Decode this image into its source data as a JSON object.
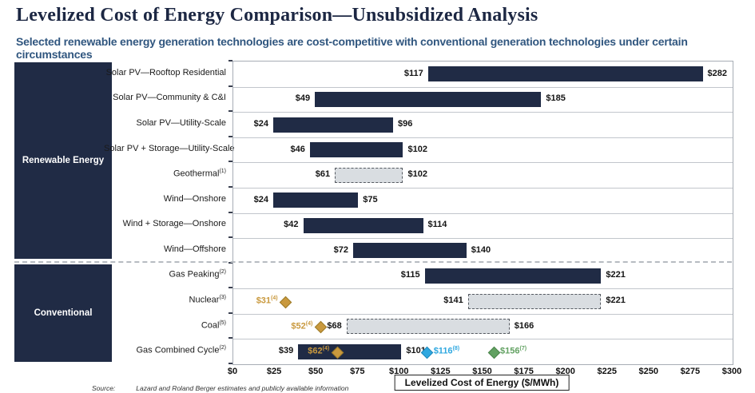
{
  "header": {
    "title": "Levelized Cost of Energy Comparison—Unsubsidized Analysis",
    "subtitle": "Selected renewable energy generation technologies are cost-competitive with conventional generation technologies under certain circumstances"
  },
  "footer": {
    "source_label": "Source:",
    "source_text": "Lazard and Roland Berger estimates and publicly available information"
  },
  "colors": {
    "navy": "#202b45",
    "dashed_fill": "#d9dde1",
    "gold": "#c9993e",
    "gold_border": "#9c7a28",
    "blue": "#2fa8e0",
    "blue_border": "#1d87ba",
    "green": "#62a162",
    "green_border": "#4a844a",
    "title_navy": "#1c2743",
    "subtitle_blue": "#30567f"
  },
  "chart_data": {
    "type": "bar",
    "orientation": "horizontal-range",
    "title": "Levelized Cost of Energy Comparison—Unsubsidized Analysis",
    "xlabel_box": "Levelized Cost of Energy ($/MWh)",
    "xlim": [
      0,
      300
    ],
    "x_ticks": [
      0,
      25,
      50,
      75,
      100,
      125,
      150,
      175,
      200,
      225,
      250,
      275,
      300
    ],
    "x_tick_labels": [
      "$0",
      "$25",
      "$50",
      "$75",
      "$100",
      "$125",
      "$150",
      "$175",
      "$200",
      "$225",
      "$250",
      "$275",
      "$300"
    ],
    "grid": false,
    "groups": [
      {
        "label": "Renewable Energy",
        "row_start": 0,
        "row_end": 7
      },
      {
        "label": "Conventional",
        "row_start": 8,
        "row_end": 11
      }
    ],
    "rows": [
      {
        "label": "Solar PV—Rooftop Residential",
        "sup": "",
        "low": 117,
        "high": 282,
        "style": "solid",
        "low_label": "$117",
        "high_label": "$282",
        "diamonds": []
      },
      {
        "label": "Solar PV—Community & C&I",
        "sup": "",
        "low": 49,
        "high": 185,
        "style": "solid",
        "low_label": "$49",
        "high_label": "$185",
        "diamonds": []
      },
      {
        "label": "Solar PV—Utility-Scale",
        "sup": "",
        "low": 24,
        "high": 96,
        "style": "solid",
        "low_label": "$24",
        "high_label": "$96",
        "diamonds": []
      },
      {
        "label": "Solar PV + Storage—Utility-Scale",
        "sup": "",
        "low": 46,
        "high": 102,
        "style": "solid",
        "low_label": "$46",
        "high_label": "$102",
        "diamonds": []
      },
      {
        "label": "Geothermal",
        "sup": "(1)",
        "low": 61,
        "high": 102,
        "style": "dashed",
        "low_label": "$61",
        "high_label": "$102",
        "diamonds": []
      },
      {
        "label": "Wind—Onshore",
        "sup": "",
        "low": 24,
        "high": 75,
        "style": "solid",
        "low_label": "$24",
        "high_label": "$75",
        "diamonds": []
      },
      {
        "label": "Wind + Storage—Onshore",
        "sup": "",
        "low": 42,
        "high": 114,
        "style": "solid",
        "low_label": "$42",
        "high_label": "$114",
        "diamonds": []
      },
      {
        "label": "Wind—Offshore",
        "sup": "",
        "low": 72,
        "high": 140,
        "style": "solid",
        "low_label": "$72",
        "high_label": "$140",
        "diamonds": []
      },
      {
        "label": "Gas Peaking",
        "sup": "(2)",
        "low": 115,
        "high": 221,
        "style": "solid",
        "low_label": "$115",
        "high_label": "$221",
        "diamonds": []
      },
      {
        "label": "Nuclear",
        "sup": "(3)",
        "low": 141,
        "high": 221,
        "style": "dashed",
        "low_label": "$141",
        "high_label": "$221",
        "diamonds": [
          {
            "value": 31,
            "label": "$31",
            "sup": "(4)",
            "color": "gold",
            "side": "left"
          }
        ]
      },
      {
        "label": "Coal",
        "sup": "(5)",
        "low": 68,
        "high": 166,
        "style": "dashed",
        "low_label": "$68",
        "high_label": "$166",
        "diamonds": [
          {
            "value": 52,
            "label": "$52",
            "sup": "(4)",
            "color": "gold",
            "side": "left"
          }
        ]
      },
      {
        "label": "Gas Combined Cycle",
        "sup": "(2)",
        "low": 39,
        "high": 101,
        "style": "solid",
        "low_label": "$39",
        "high_label": "$101",
        "diamonds": [
          {
            "value": 62,
            "label": "$62",
            "sup": "(4)",
            "color": "gold",
            "side": "left"
          },
          {
            "value": 116,
            "label": "$116",
            "sup": "(8)",
            "color": "blue",
            "side": "right"
          },
          {
            "value": 156,
            "label": "$156",
            "sup": "(7)",
            "color": "green",
            "side": "right"
          }
        ]
      }
    ]
  }
}
